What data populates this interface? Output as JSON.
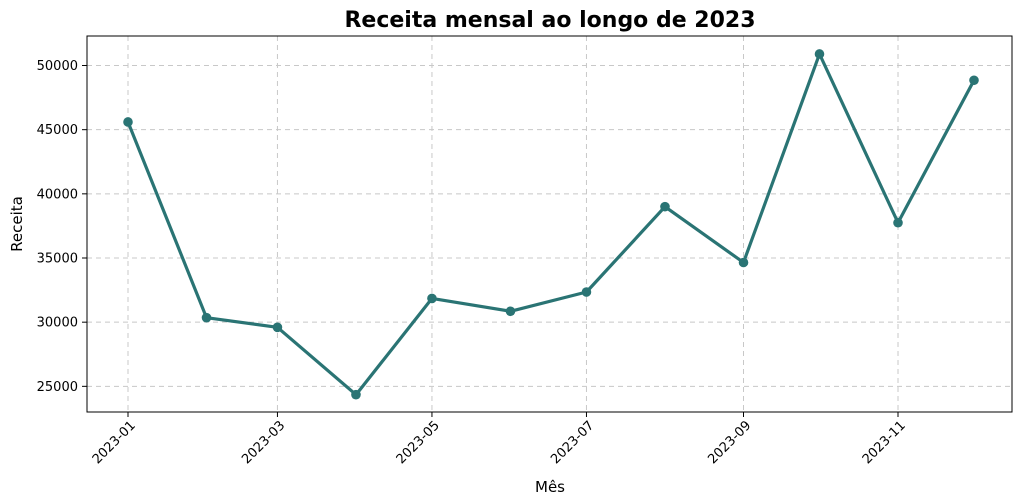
{
  "chart_data": {
    "type": "line",
    "title": "Receita mensal ao longo de 2023",
    "xlabel": "Mês",
    "ylabel": "Receita",
    "x": [
      "2023-01-01",
      "2023-02-01",
      "2023-03-01",
      "2023-04-01",
      "2023-05-01",
      "2023-06-01",
      "2023-07-01",
      "2023-08-01",
      "2023-09-01",
      "2023-10-01",
      "2023-11-01",
      "2023-12-01"
    ],
    "x_ticks": [
      "2023-01",
      "2023-03",
      "2023-05",
      "2023-07",
      "2023-09",
      "2023-11"
    ],
    "series": [
      {
        "values": [
          45600,
          30350,
          29600,
          24350,
          31850,
          30850,
          32350,
          39000,
          34650,
          50900,
          37750,
          48850
        ],
        "color": "#2a7474"
      }
    ],
    "ylim": [
      23000,
      52300
    ],
    "y_ticks": [
      25000,
      30000,
      35000,
      40000,
      45000,
      50000
    ],
    "grid": true,
    "legend": "none"
  }
}
